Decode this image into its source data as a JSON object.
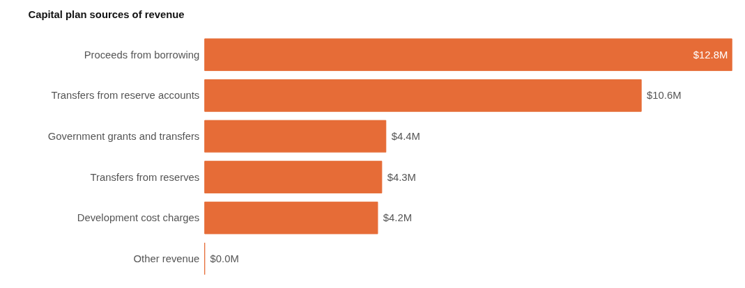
{
  "chart_data": {
    "type": "bar",
    "orientation": "horizontal",
    "title": "Capital plan sources of revenue",
    "categories": [
      "Proceeds from borrowing",
      "Transfers from reserve accounts",
      "Government grants and transfers",
      "Transfers from reserves",
      "Development cost charges",
      "Other revenue"
    ],
    "values": [
      12.8,
      10.6,
      4.4,
      4.3,
      4.2,
      0.0
    ],
    "value_labels": [
      "$12.8M",
      "$10.6M",
      "$4.4M",
      "$4.3M",
      "$4.2M",
      "$0.0M"
    ],
    "color": "#e66c37",
    "tick_labels": "y"
  }
}
